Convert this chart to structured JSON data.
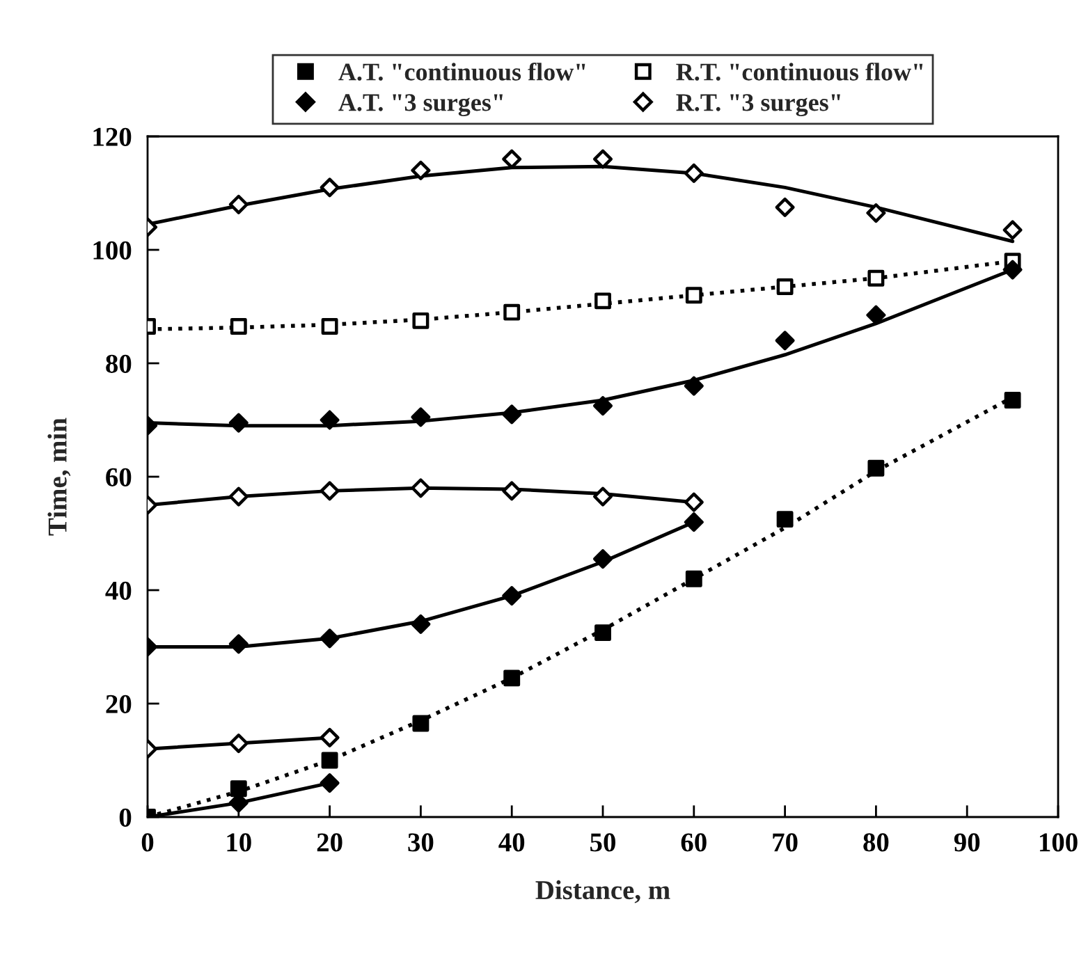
{
  "chart_data": {
    "type": "scatter",
    "xlabel": "Distance, m",
    "ylabel": "Time, min",
    "xlim": [
      0,
      100
    ],
    "xticks": [
      0,
      10,
      20,
      30,
      40,
      50,
      60,
      70,
      80,
      90,
      100
    ],
    "ylim": [
      0,
      120
    ],
    "yticks": [
      0,
      20,
      40,
      60,
      80,
      100,
      120
    ],
    "grid": false,
    "legend": "top",
    "series": [
      {
        "name": "A.T. \"continuous flow\"",
        "marker": "square",
        "color": "#000000",
        "x": [
          0,
          10,
          20,
          30,
          40,
          50,
          60,
          70,
          80,
          95
        ],
        "values": [
          0,
          5,
          10,
          16.5,
          24.5,
          32.5,
          42,
          52.5,
          61.5,
          73.5
        ]
      },
      {
        "name": "R.T. \"continuous flow\"",
        "marker": "square",
        "color": "#ffffff",
        "x": [
          0,
          10,
          20,
          30,
          40,
          50,
          60,
          70,
          80,
          95
        ],
        "values": [
          86.5,
          86.5,
          86.5,
          87.5,
          89,
          91,
          92,
          93.5,
          95,
          98
        ]
      },
      {
        "name": "A.T. \"3 surges\"",
        "marker": "diamond",
        "color": "#000000",
        "x": [
          10,
          20,
          0,
          10,
          20,
          30,
          40,
          50,
          60,
          0,
          10,
          20,
          30,
          40,
          50,
          60,
          70,
          80,
          95
        ],
        "values": [
          2.5,
          6,
          30,
          30.5,
          31.5,
          34,
          39,
          45.5,
          52,
          69,
          69.5,
          70,
          70.5,
          71,
          72.5,
          76,
          84,
          88.5,
          96.5
        ]
      },
      {
        "name": "R.T. \"3 surges\"",
        "marker": "diamond",
        "color": "#ffffff",
        "x": [
          0,
          10,
          20,
          0,
          10,
          20,
          30,
          40,
          50,
          60,
          0,
          10,
          20,
          30,
          40,
          50,
          60,
          70,
          80,
          95
        ],
        "values": [
          12,
          13,
          14,
          55,
          56.5,
          57.5,
          58,
          57.5,
          56.5,
          55.5,
          104,
          108,
          111,
          114,
          116,
          116,
          113.5,
          107.5,
          106.5,
          103.5
        ]
      },
      {
        "type": "line",
        "line_style": "dotted",
        "color": "#000000",
        "x": [
          0,
          10,
          20,
          30,
          40,
          50,
          60,
          70,
          80,
          95
        ],
        "values": [
          0,
          4.5,
          10,
          17,
          24.5,
          33,
          42,
          51,
          61,
          74
        ]
      },
      {
        "type": "line",
        "line_style": "dotted",
        "color": "#000000",
        "x": [
          0,
          10,
          20,
          30,
          40,
          50,
          60,
          70,
          80,
          95
        ],
        "values": [
          86,
          86.3,
          86.8,
          87.7,
          89,
          90.5,
          92,
          93.5,
          95,
          98
        ]
      },
      {
        "type": "line",
        "line_style": "solid",
        "color": "#000000",
        "x": [
          0,
          10,
          20
        ],
        "values": [
          0,
          2.5,
          6
        ]
      },
      {
        "type": "line",
        "line_style": "solid",
        "color": "#000000",
        "x": [
          0,
          10,
          20,
          30,
          40,
          50,
          60
        ],
        "values": [
          30,
          30,
          31.5,
          34.5,
          39,
          45,
          52
        ]
      },
      {
        "type": "line",
        "line_style": "solid",
        "color": "#000000",
        "x": [
          0,
          10,
          20,
          30,
          40,
          50,
          60,
          70,
          80,
          95
        ],
        "values": [
          69.5,
          69,
          69,
          69.8,
          71.3,
          73.5,
          77,
          81.5,
          87,
          96.5
        ]
      },
      {
        "type": "line",
        "line_style": "solid",
        "color": "#000000",
        "x": [
          0,
          10,
          20
        ],
        "values": [
          12,
          13,
          14
        ]
      },
      {
        "type": "line",
        "line_style": "solid",
        "color": "#000000",
        "x": [
          0,
          10,
          20,
          30,
          40,
          50,
          60
        ],
        "values": [
          55,
          56.5,
          57.5,
          58,
          57.8,
          57,
          55.5
        ]
      },
      {
        "type": "line",
        "line_style": "solid",
        "color": "#000000",
        "x": [
          0,
          10,
          20,
          30,
          40,
          50,
          60,
          70,
          80,
          95
        ],
        "values": [
          104.5,
          107.8,
          110.7,
          113,
          114.5,
          114.7,
          113.5,
          111,
          107.5,
          101.5
        ]
      }
    ]
  }
}
